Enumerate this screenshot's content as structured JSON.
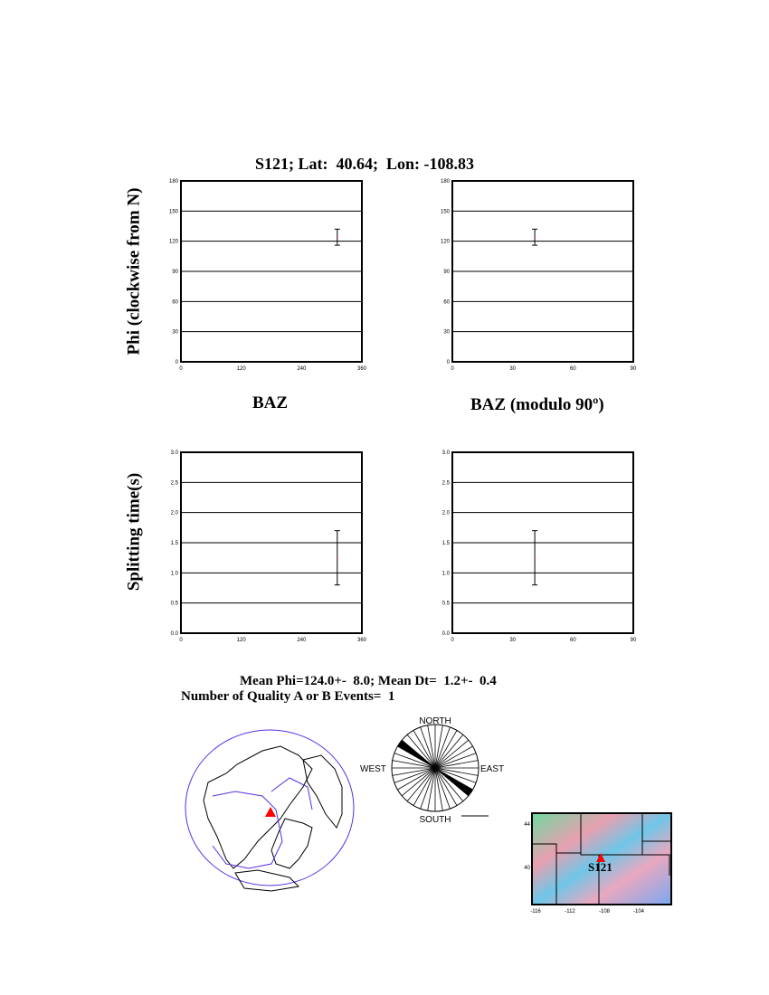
{
  "title": "S121; Lat:  40.64;  Lon: -108.83",
  "ylabel_phi": "Phi (clockwise from N)",
  "ylabel_dt": "Splitting time(s)",
  "xlabel_baz": "BAZ",
  "xlabel_mod": "BAZ (modulo 90º)",
  "summary_line1": "Mean Phi=124.0+-  8.0; Mean Dt=  1.2+-  0.4",
  "summary_line2": "Number of Quality A or B Events=  1",
  "rose": {
    "north": "NORTH",
    "south": "SOUTH",
    "east": "EAST",
    "west": "WEST",
    "sector_deg": 10,
    "filled_sector": [
      120,
      130
    ]
  },
  "station_map": {
    "station_label": "S121",
    "lon_ticks": [
      "-116",
      "-112",
      "-108",
      "-104"
    ],
    "lat_ticks": [
      "40",
      "44"
    ],
    "station_marker_color": "#ff0000"
  },
  "chart_data": [
    {
      "type": "scatter",
      "name": "phi-vs-baz",
      "xlim": [
        0,
        360
      ],
      "ylim": [
        0,
        180
      ],
      "xticks": [
        "0",
        "120",
        "240",
        "360"
      ],
      "yticks": [
        "0",
        "30",
        "60",
        "90",
        "120",
        "150",
        "180"
      ],
      "grid": "horizontal",
      "points": [
        {
          "x": 311,
          "y": 124,
          "err": 8
        }
      ]
    },
    {
      "type": "scatter",
      "name": "phi-vs-baz-mod90",
      "xlim": [
        0,
        90
      ],
      "ylim": [
        0,
        180
      ],
      "xticks": [
        "0",
        "30",
        "60",
        "90"
      ],
      "yticks": [
        "0",
        "30",
        "60",
        "90",
        "120",
        "150",
        "180"
      ],
      "grid": "horizontal",
      "points": [
        {
          "x": 41,
          "y": 124,
          "err": 8
        }
      ]
    },
    {
      "type": "scatter",
      "name": "dt-vs-baz",
      "xlim": [
        0,
        360
      ],
      "ylim": [
        0,
        3
      ],
      "xticks": [
        "0",
        "120",
        "240",
        "360"
      ],
      "yticks": [
        "0.0",
        "0.5",
        "1.0",
        "1.5",
        "2.0",
        "2.5",
        "3.0"
      ],
      "grid": "horizontal",
      "points": [
        {
          "x": 311,
          "y": 1.25,
          "err": 0.45
        }
      ]
    },
    {
      "type": "scatter",
      "name": "dt-vs-baz-mod90",
      "xlim": [
        0,
        90
      ],
      "ylim": [
        0,
        3
      ],
      "xticks": [
        "0",
        "30",
        "60",
        "90"
      ],
      "yticks": [
        "0.0",
        "0.5",
        "1.0",
        "1.5",
        "2.0",
        "2.5",
        "3.0"
      ],
      "grid": "horizontal",
      "points": [
        {
          "x": 41,
          "y": 1.25,
          "err": 0.45
        }
      ]
    }
  ]
}
